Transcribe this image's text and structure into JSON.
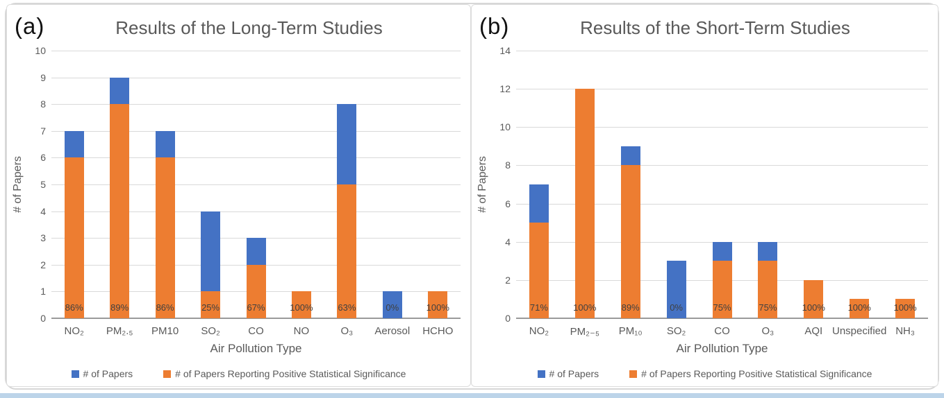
{
  "figure": {
    "accent_blue": "#4472C4",
    "accent_orange": "#ED7D31",
    "gridline_color": "#D9D9D9",
    "axis_line_color": "#9A9A9A",
    "text_color": "#595959",
    "bottom_strip_color": "#BCD4E9"
  },
  "chart_data": [
    {
      "type": "bar",
      "panel_label": "(a)",
      "title": "Results of the Long-Term Studies",
      "xlabel": "Air Pollution Type",
      "ylabel": "# of Papers",
      "ylim": [
        0,
        10
      ],
      "ytick_step": 1,
      "grid": true,
      "legend_position": "bottom",
      "categories": [
        "NO₂",
        "PM₂.₅",
        "PM10",
        "SO₂",
        "CO",
        "NO",
        "O₃",
        "Aerosol",
        "HCHO"
      ],
      "series": [
        {
          "name": "# of Papers",
          "color": "#4472C4",
          "values": [
            7,
            9,
            7,
            4,
            3,
            1,
            8,
            1,
            1
          ]
        },
        {
          "name": "# of Papers Reporting Positive Statistical Significance",
          "color": "#ED7D31",
          "values": [
            6,
            8,
            6,
            1,
            2,
            1,
            5,
            0,
            1
          ]
        }
      ],
      "bar_labels": [
        "86%",
        "89%",
        "86%",
        "25%",
        "67%",
        "100%",
        "63%",
        "0%",
        "100%"
      ]
    },
    {
      "type": "bar",
      "panel_label": "(b)",
      "title": "Results of the Short-Term Studies",
      "xlabel": "Air Pollution Type",
      "ylabel": "# of Papers",
      "ylim": [
        0,
        14
      ],
      "ytick_step": 2,
      "grid": true,
      "legend_position": "bottom",
      "categories": [
        "NO₂",
        "PM₂₋₅",
        "PM₁₀",
        "SO₂",
        "CO",
        "O₃",
        "AQI",
        "Unspecified",
        "NH₃"
      ],
      "series": [
        {
          "name": "# of Papers",
          "color": "#4472C4",
          "values": [
            7,
            12,
            9,
            3,
            4,
            4,
            2,
            1,
            1
          ]
        },
        {
          "name": "# of Papers Reporting Positive Statistical Significance",
          "color": "#ED7D31",
          "values": [
            5,
            12,
            8,
            0,
            3,
            3,
            2,
            1,
            1
          ]
        }
      ],
      "bar_labels": [
        "71%",
        "100%",
        "89%",
        "0%",
        "75%",
        "75%",
        "100%",
        "100%",
        "100%"
      ]
    }
  ]
}
